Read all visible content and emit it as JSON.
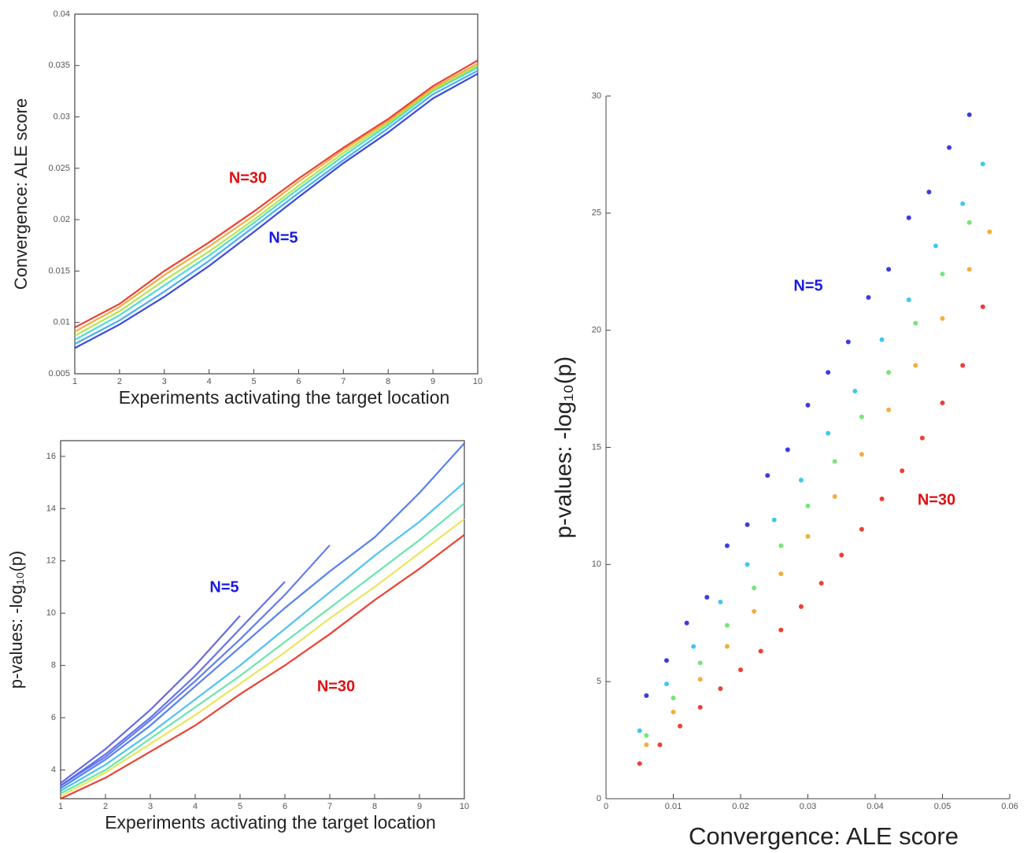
{
  "chart_data": [
    {
      "type": "line",
      "x_label": "Experiments activating the target location",
      "y_label": "Convergence: ALE score",
      "x": [
        1,
        2,
        3,
        4,
        5,
        6,
        7,
        8,
        9,
        10
      ],
      "xlim": [
        1,
        10
      ],
      "xticks": [
        1,
        2,
        3,
        4,
        5,
        6,
        7,
        8,
        9,
        10
      ],
      "ylim": [
        0.005,
        0.04
      ],
      "yticks": [
        0.005,
        0.01,
        0.015,
        0.02,
        0.025,
        0.03,
        0.035,
        0.04
      ],
      "series": [
        {
          "color": "#1a2ad8",
          "values": [
            0.0075,
            0.0098,
            0.0125,
            0.0155,
            0.0188,
            0.0222,
            0.0255,
            0.0285,
            0.0318,
            0.0342
          ]
        },
        {
          "color": "#2aa0f0",
          "values": [
            0.0079,
            0.0102,
            0.013,
            0.016,
            0.0193,
            0.0226,
            0.0258,
            0.0289,
            0.0322,
            0.0345
          ]
        },
        {
          "color": "#30d8c8",
          "values": [
            0.0083,
            0.0107,
            0.0136,
            0.0165,
            0.0197,
            0.023,
            0.0262,
            0.0292,
            0.0325,
            0.0348
          ]
        },
        {
          "color": "#a8e030",
          "values": [
            0.0087,
            0.0111,
            0.0141,
            0.0169,
            0.02,
            0.0233,
            0.0265,
            0.0294,
            0.0326,
            0.035
          ]
        },
        {
          "color": "#f0a020",
          "values": [
            0.0091,
            0.0115,
            0.0146,
            0.0174,
            0.0204,
            0.0237,
            0.0268,
            0.0296,
            0.0328,
            0.0352
          ]
        },
        {
          "color": "#e82010",
          "values": [
            0.0095,
            0.0118,
            0.015,
            0.0178,
            0.0208,
            0.024,
            0.027,
            0.0298,
            0.033,
            0.0355
          ]
        }
      ],
      "annotations": [
        {
          "text": "N=30",
          "color": "#e01010"
        },
        {
          "text": "N=5",
          "color": "#1a1ae0"
        }
      ]
    },
    {
      "type": "line",
      "x_label": "Experiments activating the target location",
      "y_label": "p-values: -log₁₀(p)",
      "x": [
        1,
        2,
        3,
        4,
        5,
        6,
        7,
        8,
        9,
        10
      ],
      "xlim": [
        1,
        10
      ],
      "xticks": [
        1,
        2,
        3,
        4,
        5,
        6,
        7,
        8,
        9,
        10
      ],
      "ylim": [
        2.9,
        16.6
      ],
      "yticks": [
        4,
        6,
        8,
        10,
        12,
        14,
        16
      ],
      "series": [
        {
          "color": "#4a50e0",
          "values": [
            3.5,
            4.8,
            6.3,
            8.0,
            9.9,
            null,
            null,
            null,
            null,
            null
          ]
        },
        {
          "color": "#4a5ae8",
          "values": [
            3.4,
            4.6,
            6.0,
            7.6,
            9.4,
            11.2,
            null,
            null,
            null,
            null
          ]
        },
        {
          "color": "#4a66ea",
          "values": [
            3.4,
            4.5,
            5.9,
            7.4,
            9.0,
            10.7,
            12.6,
            null,
            null,
            null
          ]
        },
        {
          "color": "#3a6aee",
          "values": [
            3.3,
            4.4,
            5.7,
            7.2,
            8.7,
            10.2,
            11.6,
            12.9,
            14.6,
            16.5
          ]
        },
        {
          "color": "#30b8f0",
          "values": [
            3.2,
            4.2,
            5.4,
            6.7,
            8.0,
            9.4,
            10.8,
            12.2,
            13.5,
            15.0
          ]
        },
        {
          "color": "#50e0a0",
          "values": [
            3.1,
            4.0,
            5.2,
            6.4,
            7.6,
            8.9,
            10.2,
            11.5,
            12.8,
            14.2
          ]
        },
        {
          "color": "#e8e040",
          "values": [
            3.0,
            3.9,
            5.0,
            6.1,
            7.3,
            8.5,
            9.8,
            11.0,
            12.3,
            13.6
          ]
        },
        {
          "color": "#e82010",
          "values": [
            2.9,
            3.7,
            4.7,
            5.7,
            6.9,
            8.0,
            9.2,
            10.5,
            11.7,
            13.0
          ]
        }
      ],
      "annotations": [
        {
          "text": "N=5",
          "color": "#1a1ae0"
        },
        {
          "text": "N=30",
          "color": "#e01010"
        }
      ]
    },
    {
      "type": "scatter",
      "x_label": "Convergence: ALE score",
      "y_label": "p-values: -log₁₀(p)",
      "xlim": [
        0,
        0.06
      ],
      "xticks": [
        0,
        0.01,
        0.02,
        0.03,
        0.04,
        0.05,
        0.06
      ],
      "ylim": [
        0,
        30
      ],
      "yticks": [
        0,
        5,
        10,
        15,
        20,
        25,
        30
      ],
      "series": [
        {
          "color": "#1a1adc",
          "x": [
            0.006,
            0.009,
            0.012,
            0.015,
            0.018,
            0.021,
            0.024,
            0.027,
            0.03,
            0.033,
            0.036,
            0.039,
            0.042,
            0.045,
            0.048,
            0.051,
            0.054
          ],
          "values": [
            4.4,
            5.9,
            7.5,
            8.6,
            10.8,
            11.7,
            13.8,
            14.9,
            16.8,
            18.2,
            19.5,
            21.4,
            22.6,
            24.8,
            25.9,
            27.8,
            29.2
          ]
        },
        {
          "color": "#20c0e8",
          "x": [
            0.005,
            0.009,
            0.013,
            0.017,
            0.021,
            0.025,
            0.029,
            0.033,
            0.037,
            0.041,
            0.045,
            0.049,
            0.053,
            0.056
          ],
          "values": [
            2.9,
            4.9,
            6.5,
            8.4,
            10.0,
            11.9,
            13.6,
            15.6,
            17.4,
            19.6,
            21.3,
            23.6,
            25.4,
            27.1
          ]
        },
        {
          "color": "#60e060",
          "x": [
            0.006,
            0.01,
            0.014,
            0.018,
            0.022,
            0.026,
            0.03,
            0.034,
            0.038,
            0.042,
            0.046,
            0.05,
            0.054
          ],
          "values": [
            2.7,
            4.3,
            5.8,
            7.4,
            9.0,
            10.8,
            12.5,
            14.4,
            16.3,
            18.2,
            20.3,
            22.4,
            24.6
          ]
        },
        {
          "color": "#f0a020",
          "x": [
            0.006,
            0.01,
            0.014,
            0.018,
            0.022,
            0.026,
            0.03,
            0.034,
            0.038,
            0.042,
            0.046,
            0.05,
            0.054,
            0.057
          ],
          "values": [
            2.3,
            3.7,
            5.1,
            6.5,
            8.0,
            9.6,
            11.2,
            12.9,
            14.7,
            16.6,
            18.5,
            20.5,
            22.6,
            24.2
          ]
        },
        {
          "color": "#e82010",
          "x": [
            0.005,
            0.008,
            0.011,
            0.014,
            0.017,
            0.02,
            0.023,
            0.026,
            0.029,
            0.032,
            0.035,
            0.038,
            0.041,
            0.044,
            0.047,
            0.05,
            0.053,
            0.056
          ],
          "values": [
            1.5,
            2.3,
            3.1,
            3.9,
            4.7,
            5.5,
            6.3,
            7.2,
            8.2,
            9.2,
            10.4,
            11.5,
            12.8,
            14.0,
            15.4,
            16.9,
            18.5,
            21.0
          ]
        }
      ],
      "annotations": [
        {
          "text": "N=5",
          "color": "#1a1ae0"
        },
        {
          "text": "N=30",
          "color": "#e01010"
        }
      ]
    }
  ]
}
